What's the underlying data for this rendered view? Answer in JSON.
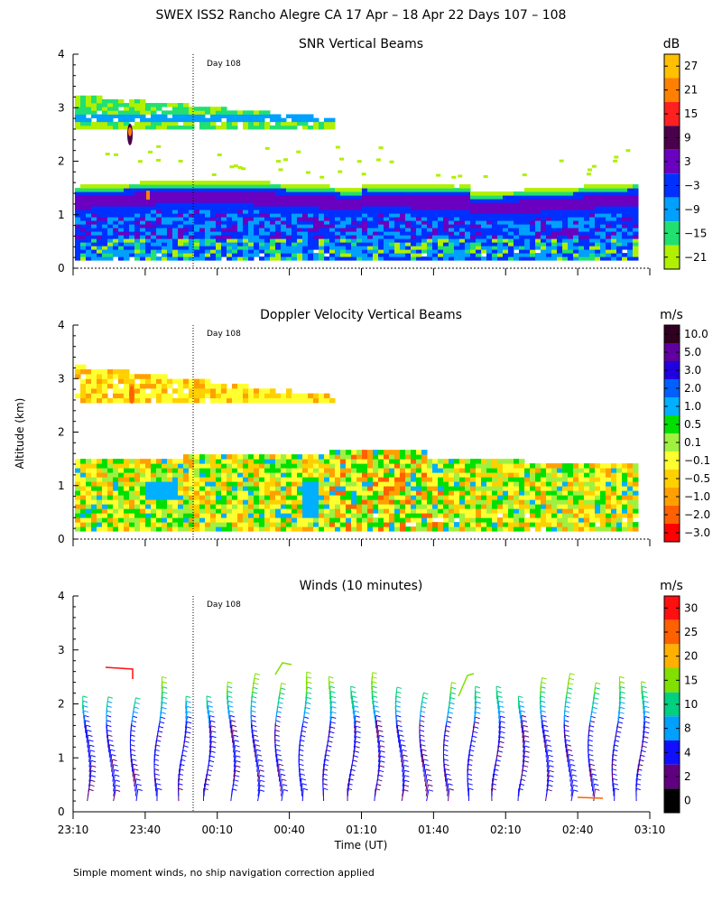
{
  "title": "SWEX ISS2 Rancho Alegre CA  17 Apr – 18 Apr 22 Days 107 – 108",
  "footnote": "Simple moment winds, no ship navigation correction applied",
  "y_axis_label": "Altitude (km)",
  "x_axis_label": "Time (UT)",
  "x_ticks": [
    "23:10",
    "23:40",
    "00:10",
    "00:40",
    "01:10",
    "01:40",
    "02:10",
    "02:40",
    "03:10"
  ],
  "y_ticks": [
    "0",
    "1",
    "2",
    "3",
    "4"
  ],
  "day_marker": "Day 108",
  "chart_data": [
    {
      "type": "heatmap",
      "title": "SNR Vertical Beams",
      "unit": "dB",
      "ylim": [
        0,
        4
      ],
      "colorbar": {
        "labels": [
          "27",
          "21",
          "15",
          "9",
          "3",
          "−3",
          "−9",
          "−15",
          "−21"
        ],
        "colors": [
          "#ffc000",
          "#ff8000",
          "#ff2020",
          "#4a004a",
          "#6a00c0",
          "#0030ff",
          "#00a0ff",
          "#20e070",
          "#b0f000"
        ]
      },
      "features": {
        "upper_layer_km": [
          2.6,
          3.2
        ],
        "boundary_layer_top_km": 1.5
      }
    },
    {
      "type": "heatmap",
      "title": "Doppler Velocity Vertical Beams",
      "unit": "m/s",
      "ylim": [
        0,
        4
      ],
      "colorbar": {
        "labels": [
          "10.0",
          "5.0",
          "3.0",
          "2.0",
          "1.0",
          "0.5",
          "0.1",
          "−0.1",
          "−0.5",
          "−1.0",
          "−2.0",
          "−3.0"
        ],
        "colors": [
          "#300020",
          "#6000a0",
          "#2000e0",
          "#0060ff",
          "#00b0ff",
          "#00e000",
          "#a0f040",
          "#ffff30",
          "#ffd000",
          "#ffa000",
          "#ff6000",
          "#ff0000"
        ]
      }
    },
    {
      "type": "barbs",
      "title": "Winds (10 minutes)",
      "unit": "m/s",
      "ylim": [
        0,
        4
      ],
      "colorbar": {
        "labels": [
          "30",
          "25",
          "20",
          "15",
          "10",
          "8",
          "4",
          "2",
          "0"
        ],
        "colors": [
          "#ff1010",
          "#ff6000",
          "#ffb000",
          "#80e000",
          "#00d080",
          "#00a0ff",
          "#1010ff",
          "#600080",
          "#000000"
        ]
      }
    }
  ]
}
